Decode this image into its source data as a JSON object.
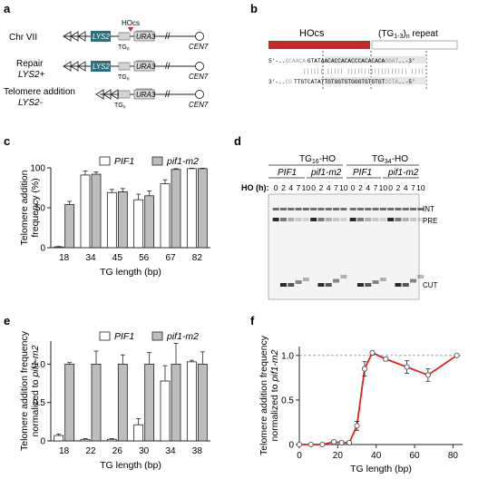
{
  "panels": {
    "a": {
      "letter": "a",
      "rows": [
        {
          "label": "Chr VII",
          "label2": "",
          "hocs": "HOcs",
          "lys2": "LYS2",
          "ura3": "URA3",
          "tg": "TG",
          "tg_sub": "n",
          "cen": "CEN7"
        },
        {
          "label": "Repair",
          "label2": "LYS2+",
          "lys2": "LYS2",
          "ura3": "URA3",
          "tg": "TG",
          "tg_sub": "n",
          "cen": "CEN7"
        },
        {
          "label": "Telomere addition",
          "label2": "LYS2-",
          "ura3": "URA3",
          "tg": "TG",
          "tg_sub": "n",
          "cen": "CEN7"
        }
      ]
    },
    "b": {
      "letter": "b",
      "hocs_label": "HOcs",
      "repeat_label_pre": "(TG",
      "repeat_label_sub": "1-3",
      "repeat_label_post": ")",
      "repeat_label_sub2": "n",
      "repeat_label_tail": " repeat",
      "top_strand": {
        "prefix": "5'-..",
        "faded1": "GCAACA",
        "normal1": "GTATA",
        "highlight": "ACACCACACCCACACACA",
        "faded2": "GGAT",
        "suffix": "..-3'"
      },
      "bars": "|||||| ||||| |||||||||||||||||| ||||",
      "bottom_strand": {
        "prefix": "3'-..",
        "faded1": "CG",
        "normal1": "TTGTCATAT",
        "highlight": "TGTGGTGTGGGTGTGTGT",
        "faded2": "CCTA",
        "suffix": "..-5'"
      }
    },
    "c": {
      "letter": "c",
      "chart_data": {
        "type": "bar",
        "categories": [
          "18",
          "34",
          "45",
          "56",
          "67",
          "82"
        ],
        "series": [
          {
            "name": "PIF1",
            "values": [
              1,
              91,
              69,
              60,
              80,
              99
            ],
            "errors": [
              0.5,
              5,
              4,
              7,
              5,
              0.5
            ],
            "color": "#ffffff"
          },
          {
            "name": "pif1-m2",
            "values": [
              54,
              92,
              70,
              65,
              98,
              99
            ],
            "errors": [
              4,
              3,
              4,
              6,
              1,
              0.5
            ],
            "color": "#bdbdbd"
          }
        ],
        "xlabel": "TG length (bp)",
        "ylabel": "Telomere addition\nfrequency (%)",
        "ylabel_lines": [
          "Telomere addition",
          "frequency (%)"
        ],
        "ylim": [
          0,
          100
        ],
        "yticks": [
          "0",
          "50",
          "100"
        ],
        "legend": "top"
      }
    },
    "d": {
      "letter": "d",
      "group_labels": [
        {
          "pre": "TG",
          "sub": "16",
          "post": "-HO"
        },
        {
          "pre": "TG",
          "sub": "34",
          "post": "-HO"
        }
      ],
      "strain_labels": [
        "PIF1",
        "pif1-m2",
        "PIF1",
        "pif1-m2"
      ],
      "ho_label": "HO (h):",
      "timepoints": [
        "0",
        "2",
        "4",
        "7",
        "10",
        "0",
        "2",
        "4",
        "7",
        "10",
        "0",
        "2",
        "4",
        "7",
        "10",
        "0",
        "2",
        "4",
        "7",
        "10"
      ],
      "band_labels": [
        "INT",
        "PRE",
        "CUT"
      ]
    },
    "e": {
      "letter": "e",
      "chart_data": {
        "type": "bar",
        "categories": [
          "18",
          "22",
          "26",
          "30",
          "34",
          "38"
        ],
        "series": [
          {
            "name": "PIF1",
            "values": [
              0.07,
              0.02,
              0.02,
              0.21,
              0.78,
              1.03
            ],
            "errors": [
              0.02,
              0.01,
              0.01,
              0.08,
              0.2,
              0.02
            ],
            "color": "#ffffff"
          },
          {
            "name": "pif1-m2",
            "values": [
              1.0,
              1.0,
              1.0,
              1.0,
              1.0,
              1.0
            ],
            "errors": [
              0.02,
              0.17,
              0.12,
              0.15,
              0.27,
              0.16
            ],
            "color": "#bdbdbd"
          }
        ],
        "xlabel": "TG length (bp)",
        "ylabel_lines": [
          "Telomere addition frequency",
          "normalized to pif1-m2"
        ],
        "ylim": [
          0,
          1.3
        ],
        "yticks": [
          "0",
          "0.5",
          "1.0"
        ],
        "legend": "top"
      }
    },
    "f": {
      "letter": "f",
      "chart_data": {
        "type": "line",
        "x": [
          0,
          6,
          12,
          18,
          22,
          26,
          30,
          34,
          38,
          45,
          56,
          67,
          82
        ],
        "y": [
          0.0,
          0.0,
          0.0,
          0.03,
          0.02,
          0.02,
          0.21,
          0.85,
          1.03,
          0.96,
          0.87,
          0.78,
          1.0
        ],
        "errors": [
          0.01,
          0.01,
          0.01,
          0.02,
          0.02,
          0.02,
          0.05,
          0.08,
          0.02,
          0.02,
          0.07,
          0.07,
          0.01
        ],
        "xlabel": "TG length (bp)",
        "ylabel_lines": [
          "Telomere addition frequency",
          "normalized to pif1-m2"
        ],
        "xlim": [
          0,
          85
        ],
        "ylim": [
          0,
          1.1
        ],
        "xticks": [
          "0",
          "20",
          "40",
          "60",
          "80"
        ],
        "yticks": [
          "0",
          "0.5",
          "1.0"
        ],
        "reference_line": 1.0,
        "line_color": "#e02020"
      }
    }
  }
}
